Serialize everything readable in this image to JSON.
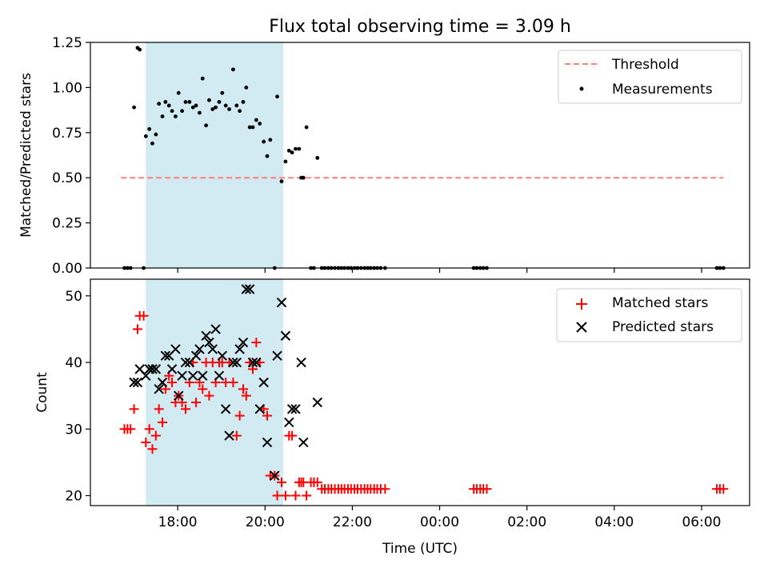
{
  "title": "Flux total observing time = 3.09 h",
  "colors": {
    "threshold": "#ff7f7f",
    "measurement": "#000000",
    "matched": "#ff0000",
    "predicted": "#000000",
    "span": "#add8e6"
  },
  "x_ticks": [
    {
      "t": 18,
      "label": "18:00"
    },
    {
      "t": 20,
      "label": "20:00"
    },
    {
      "t": 22,
      "label": "22:00"
    },
    {
      "t": 24,
      "label": "00:00"
    },
    {
      "t": 26,
      "label": "02:00"
    },
    {
      "t": 28,
      "label": "04:00"
    },
    {
      "t": 30,
      "label": "06:00"
    }
  ],
  "chart_data": [
    {
      "type": "scatter",
      "title": "Flux total observing time = 3.09 h",
      "xlabel": "",
      "ylabel": "Matched/Predicted stars",
      "xlim": [
        16.0,
        31.1
      ],
      "ylim": [
        0,
        1.25
      ],
      "y_ticks": [
        0.0,
        0.25,
        0.5,
        0.75,
        1.0,
        1.25
      ],
      "y_tick_labels": [
        "0.00",
        "0.25",
        "0.50",
        "0.75",
        "1.00",
        "1.25"
      ],
      "legend_position": "top-right",
      "highlight_span": [
        17.27,
        20.42
      ],
      "threshold": {
        "name": "Threshold",
        "y": 0.5,
        "x": [
          16.7,
          30.5
        ]
      },
      "series": [
        {
          "name": "Measurements",
          "points": [
            [
              16.78,
              0
            ],
            [
              16.85,
              0
            ],
            [
              16.92,
              0
            ],
            [
              17.0,
              0.89
            ],
            [
              17.08,
              1.22
            ],
            [
              17.13,
              1.21
            ],
            [
              17.22,
              0
            ],
            [
              17.27,
              0.73
            ],
            [
              17.35,
              0.77
            ],
            [
              17.42,
              0.69
            ],
            [
              17.5,
              0.74
            ],
            [
              17.57,
              0.91
            ],
            [
              17.65,
              0.84
            ],
            [
              17.72,
              0.92
            ],
            [
              17.8,
              0.9
            ],
            [
              17.87,
              0.87
            ],
            [
              17.95,
              0.84
            ],
            [
              18.02,
              0.97
            ],
            [
              18.1,
              0.87
            ],
            [
              18.18,
              0.92
            ],
            [
              18.27,
              0.92
            ],
            [
              18.35,
              0.89
            ],
            [
              18.42,
              0.9
            ],
            [
              18.5,
              0.86
            ],
            [
              18.57,
              1.05
            ],
            [
              18.65,
              0.79
            ],
            [
              18.72,
              0.93
            ],
            [
              18.8,
              0.88
            ],
            [
              18.87,
              0.89
            ],
            [
              18.95,
              0.92
            ],
            [
              19.02,
              0.97
            ],
            [
              19.1,
              0.9
            ],
            [
              19.18,
              0.88
            ],
            [
              19.27,
              1.1
            ],
            [
              19.35,
              0.9
            ],
            [
              19.42,
              0.87
            ],
            [
              19.5,
              0.92
            ],
            [
              19.57,
              1.0
            ],
            [
              19.65,
              0.78
            ],
            [
              19.72,
              0.78
            ],
            [
              19.8,
              0.82
            ],
            [
              19.88,
              0.8
            ],
            [
              19.97,
              0.7
            ],
            [
              20.05,
              0.62
            ],
            [
              20.12,
              0.71
            ],
            [
              20.22,
              0
            ],
            [
              20.28,
              0.95
            ],
            [
              20.38,
              0.48
            ],
            [
              20.47,
              0.59
            ],
            [
              20.55,
              0.65
            ],
            [
              20.62,
              0.64
            ],
            [
              20.7,
              0.66
            ],
            [
              20.78,
              0.66
            ],
            [
              20.83,
              0.5
            ],
            [
              20.88,
              0.5
            ],
            [
              20.95,
              0.78
            ],
            [
              21.05,
              0
            ],
            [
              21.12,
              0
            ],
            [
              21.2,
              0.61
            ],
            [
              21.3,
              0
            ],
            [
              21.37,
              0
            ],
            [
              21.45,
              0
            ],
            [
              21.52,
              0
            ],
            [
              21.6,
              0
            ],
            [
              21.68,
              0
            ],
            [
              21.75,
              0
            ],
            [
              21.82,
              0
            ],
            [
              21.9,
              0
            ],
            [
              21.97,
              0
            ],
            [
              22.05,
              0
            ],
            [
              22.12,
              0
            ],
            [
              22.2,
              0
            ],
            [
              22.28,
              0
            ],
            [
              22.35,
              0
            ],
            [
              22.42,
              0
            ],
            [
              22.5,
              0
            ],
            [
              22.57,
              0
            ],
            [
              22.65,
              0
            ],
            [
              22.75,
              0
            ],
            [
              24.78,
              0
            ],
            [
              24.85,
              0
            ],
            [
              24.93,
              0
            ],
            [
              25.0,
              0
            ],
            [
              25.08,
              0
            ],
            [
              30.35,
              0
            ],
            [
              30.42,
              0
            ],
            [
              30.5,
              0
            ]
          ]
        }
      ]
    },
    {
      "type": "scatter",
      "xlabel": "Time (UTC)",
      "ylabel": "Count",
      "xlim": [
        16.0,
        31.1
      ],
      "ylim": [
        18.5,
        52.5
      ],
      "y_ticks": [
        20,
        30,
        40,
        50
      ],
      "y_tick_labels": [
        "20",
        "30",
        "40",
        "50"
      ],
      "legend_position": "top-right",
      "highlight_span": [
        17.27,
        20.42
      ],
      "series": [
        {
          "name": "Matched stars",
          "marker": "plus",
          "points": [
            [
              16.78,
              30
            ],
            [
              16.85,
              30
            ],
            [
              16.92,
              30
            ],
            [
              17.0,
              33
            ],
            [
              17.08,
              45
            ],
            [
              17.13,
              47
            ],
            [
              17.22,
              47
            ],
            [
              17.27,
              28
            ],
            [
              17.35,
              30
            ],
            [
              17.42,
              27
            ],
            [
              17.5,
              29
            ],
            [
              17.57,
              33
            ],
            [
              17.65,
              31
            ],
            [
              17.72,
              36
            ],
            [
              17.8,
              38
            ],
            [
              17.87,
              37
            ],
            [
              17.95,
              34
            ],
            [
              18.02,
              35
            ],
            [
              18.1,
              34
            ],
            [
              18.18,
              33
            ],
            [
              18.27,
              37
            ],
            [
              18.35,
              40
            ],
            [
              18.42,
              34
            ],
            [
              18.5,
              37
            ],
            [
              18.57,
              36
            ],
            [
              18.65,
              40
            ],
            [
              18.72,
              35
            ],
            [
              18.8,
              40
            ],
            [
              18.87,
              37
            ],
            [
              18.95,
              40
            ],
            [
              19.02,
              40
            ],
            [
              19.1,
              37
            ],
            [
              19.18,
              40
            ],
            [
              19.27,
              37
            ],
            [
              19.35,
              29
            ],
            [
              19.42,
              32
            ],
            [
              19.5,
              36
            ],
            [
              19.57,
              35
            ],
            [
              19.65,
              40
            ],
            [
              19.72,
              39
            ],
            [
              19.8,
              43
            ],
            [
              19.88,
              40
            ],
            [
              19.97,
              33
            ],
            [
              20.05,
              32
            ],
            [
              20.12,
              23
            ],
            [
              20.22,
              23
            ],
            [
              20.28,
              20
            ],
            [
              20.38,
              22
            ],
            [
              20.47,
              20
            ],
            [
              20.55,
              29
            ],
            [
              20.62,
              29
            ],
            [
              20.7,
              20
            ],
            [
              20.78,
              22
            ],
            [
              20.83,
              22
            ],
            [
              20.88,
              22
            ],
            [
              20.95,
              20
            ],
            [
              21.05,
              22
            ],
            [
              21.12,
              22
            ],
            [
              21.2,
              22
            ],
            [
              21.3,
              21
            ],
            [
              21.37,
              21
            ],
            [
              21.45,
              21
            ],
            [
              21.52,
              21
            ],
            [
              21.6,
              21
            ],
            [
              21.68,
              21
            ],
            [
              21.75,
              21
            ],
            [
              21.82,
              21
            ],
            [
              21.9,
              21
            ],
            [
              21.97,
              21
            ],
            [
              22.05,
              21
            ],
            [
              22.12,
              21
            ],
            [
              22.2,
              21
            ],
            [
              22.28,
              21
            ],
            [
              22.35,
              21
            ],
            [
              22.42,
              21
            ],
            [
              22.5,
              21
            ],
            [
              22.57,
              21
            ],
            [
              22.65,
              21
            ],
            [
              22.75,
              21
            ],
            [
              24.78,
              21
            ],
            [
              24.85,
              21
            ],
            [
              24.93,
              21
            ],
            [
              25.0,
              21
            ],
            [
              25.08,
              21
            ],
            [
              30.35,
              21
            ],
            [
              30.42,
              21
            ],
            [
              30.5,
              21
            ]
          ]
        },
        {
          "name": "Predicted stars",
          "marker": "x",
          "points": [
            [
              17.0,
              37
            ],
            [
              17.08,
              37
            ],
            [
              17.13,
              39
            ],
            [
              17.27,
              38
            ],
            [
              17.35,
              39
            ],
            [
              17.42,
              39
            ],
            [
              17.5,
              39
            ],
            [
              17.57,
              36
            ],
            [
              17.65,
              37
            ],
            [
              17.72,
              41
            ],
            [
              17.8,
              41
            ],
            [
              17.87,
              39
            ],
            [
              17.95,
              42
            ],
            [
              18.02,
              35
            ],
            [
              18.1,
              38
            ],
            [
              18.18,
              40
            ],
            [
              18.27,
              40
            ],
            [
              18.35,
              38
            ],
            [
              18.42,
              41
            ],
            [
              18.5,
              42
            ],
            [
              18.57,
              38
            ],
            [
              18.65,
              44
            ],
            [
              18.72,
              43
            ],
            [
              18.8,
              42
            ],
            [
              18.87,
              45
            ],
            [
              18.95,
              38
            ],
            [
              19.02,
              41
            ],
            [
              19.1,
              33
            ],
            [
              19.18,
              29
            ],
            [
              19.27,
              40
            ],
            [
              19.35,
              40
            ],
            [
              19.42,
              42
            ],
            [
              19.5,
              43
            ],
            [
              19.57,
              51
            ],
            [
              19.65,
              51
            ],
            [
              19.72,
              40
            ],
            [
              19.8,
              40
            ],
            [
              19.88,
              33
            ],
            [
              19.97,
              37
            ],
            [
              20.05,
              28
            ],
            [
              20.22,
              23
            ],
            [
              20.28,
              41
            ],
            [
              20.38,
              49
            ],
            [
              20.47,
              44
            ],
            [
              20.55,
              31
            ],
            [
              20.62,
              33
            ],
            [
              20.7,
              33
            ],
            [
              20.83,
              40
            ],
            [
              20.88,
              28
            ],
            [
              21.2,
              34
            ]
          ]
        }
      ]
    }
  ]
}
